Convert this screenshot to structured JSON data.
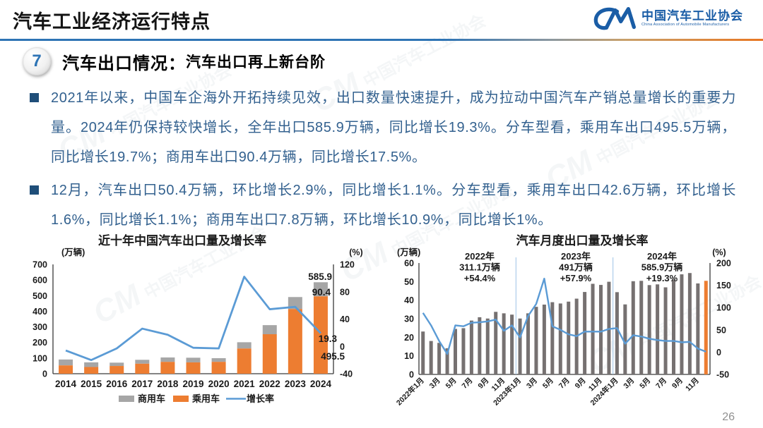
{
  "page": {
    "number": "26"
  },
  "header": {
    "title": "汽车工业经济运行特点",
    "logo": {
      "mark": "CM-logo",
      "name": "中国汽车工业协会",
      "subtitle": "China Association of Automobile Manufacturers"
    }
  },
  "section": {
    "badge": "7",
    "title": "汽车出口情况：",
    "subtitle": "汽车出口再上新台阶"
  },
  "bullets": [
    "2021年以来，中国车企海外开拓持续见效，出口数量快速提升，成为拉动中国汽车产销总量增长的重要力量。2024年仍保持较快增长，全年出口585.9万辆，同比增长19.3%。分车型看，乘用车出口495.5万辆，同比增长19.7%；商用车出口90.4万辆，同比增长17.5%。",
    "12月，汽车出口50.4万辆，环比增长2.9%，同比增长1.1%。分车型看，乘用车出口42.6万辆，环比增长1.6%，同比增长1.1%；商用车出口7.8万辆，环比增长10.9%，同比增长1%。"
  ],
  "watermark_text": "中国汽车工业协会",
  "watermark_mark": "CM",
  "colors": {
    "accent_blue": "#2e74b5",
    "logo_blue": "#1a5da6",
    "body_text_blue": "#33618f",
    "bullet_navy": "#1f4e79",
    "line_blue": "#5b9bd5",
    "bar_orange": "#ed7d31",
    "bar_gray_light": "#a6a6a6",
    "bar_gray_dark": "#767171",
    "separator_blue": "#9dc3e6",
    "rule_orange": "#e87722",
    "chart_text": "#1a1a1a"
  },
  "chart_data": [
    {
      "type": "bar+line",
      "title": "近十年中国汽车出口量及增长率",
      "left_axis_label": "(万辆)",
      "right_axis_label": "(%)",
      "categories": [
        "2014",
        "2015",
        "2016",
        "2017",
        "2018",
        "2019",
        "2020",
        "2021",
        "2022",
        "2023",
        "2024"
      ],
      "series": [
        {
          "name": "商用车",
          "type": "bar",
          "stack_order": "top",
          "color": "#a6a6a6",
          "values": [
            37.7,
            30.0,
            21.3,
            25.2,
            28.3,
            29.9,
            23.5,
            40.2,
            58.2,
            77.0,
            90.4
          ]
        },
        {
          "name": "乘用车",
          "type": "bar",
          "stack_order": "bottom",
          "color": "#ed7d31",
          "values": [
            53.3,
            42.8,
            49.5,
            63.9,
            75.8,
            72.5,
            76.0,
            161.4,
            252.9,
            414.0,
            495.5
          ]
        },
        {
          "name": "增长率",
          "type": "line",
          "axis": "right",
          "color": "#5b9bd5",
          "values": [
            -6,
            -20,
            -3,
            26,
            17,
            -2,
            -3,
            102,
            54.4,
            57.9,
            19.3
          ]
        }
      ],
      "left_ylim": [
        0,
        700
      ],
      "left_ticks": [
        700,
        600,
        500,
        400,
        300,
        200,
        100,
        0
      ],
      "right_ylim": [
        -40,
        120
      ],
      "right_ticks": [
        120,
        80,
        40,
        0,
        -40
      ],
      "data_labels_2024": {
        "total": "585.9",
        "commercial": "90.4",
        "growth": "19.3",
        "passenger": "495.5"
      },
      "legend": [
        {
          "label": "商用车",
          "swatch": "bar",
          "color": "#a6a6a6"
        },
        {
          "label": "乘用车",
          "swatch": "bar",
          "color": "#ed7d31"
        },
        {
          "label": "增长率",
          "swatch": "line",
          "color": "#5b9bd5"
        }
      ],
      "grid": false,
      "legend_position": "bottom"
    },
    {
      "type": "bar+line",
      "title": "汽车月度出口量及增长率",
      "left_axis_label": "(万辆)",
      "right_axis_label": "(%)",
      "x_tick_labels": [
        "2022年1月",
        "3月",
        "5月",
        "7月",
        "9月",
        "11月",
        "2023年1月",
        "3月",
        "5月",
        "7月",
        "9月",
        "11月",
        "2024年1月",
        "3月",
        "5月",
        "7月",
        "9月",
        "11月"
      ],
      "bars": {
        "name": "月度出口量",
        "color": "#767171",
        "highlight_index": 35,
        "highlight_color": "#ed7d31",
        "values": [
          23.1,
          18.0,
          17.0,
          14.1,
          24.5,
          24.9,
          29.0,
          30.8,
          30.1,
          33.7,
          32.9,
          32.2,
          30.1,
          32.9,
          36.4,
          37.6,
          38.9,
          38.2,
          39.2,
          40.8,
          44.4,
          48.8,
          48.2,
          49.9,
          44.3,
          37.7,
          50.2,
          50.4,
          48.1,
          48.5,
          46.9,
          51.1,
          53.9,
          54.6,
          49.0,
          50.4
        ]
      },
      "line": {
        "name": "增长率",
        "color": "#5b9bd5",
        "axis": "right",
        "values": [
          88,
          60,
          25,
          -4,
          60,
          58,
          66,
          67,
          69,
          73,
          48,
          60,
          33,
          81,
          108,
          165,
          58,
          50,
          40,
          36,
          46,
          46,
          46,
          52,
          54,
          19,
          38,
          35,
          30,
          27,
          25,
          25,
          22,
          23,
          8,
          1
        ]
      },
      "annotations": [
        {
          "lines": [
            "2022年",
            "311.1万辆",
            "+54.4%"
          ]
        },
        {
          "lines": [
            "2023年",
            "491万辆",
            "+57.9%"
          ]
        },
        {
          "lines": [
            "2024年",
            "585.9万辆",
            "+19.3%"
          ]
        }
      ],
      "year_separators_after_month": [
        12,
        24
      ],
      "left_ylim": [
        0,
        60
      ],
      "left_ticks": [
        60,
        50,
        40,
        30,
        20,
        10,
        0
      ],
      "right_ylim": [
        -50,
        200
      ],
      "right_ticks": [
        200,
        150,
        100,
        50,
        0,
        -50
      ],
      "grid": false
    }
  ]
}
